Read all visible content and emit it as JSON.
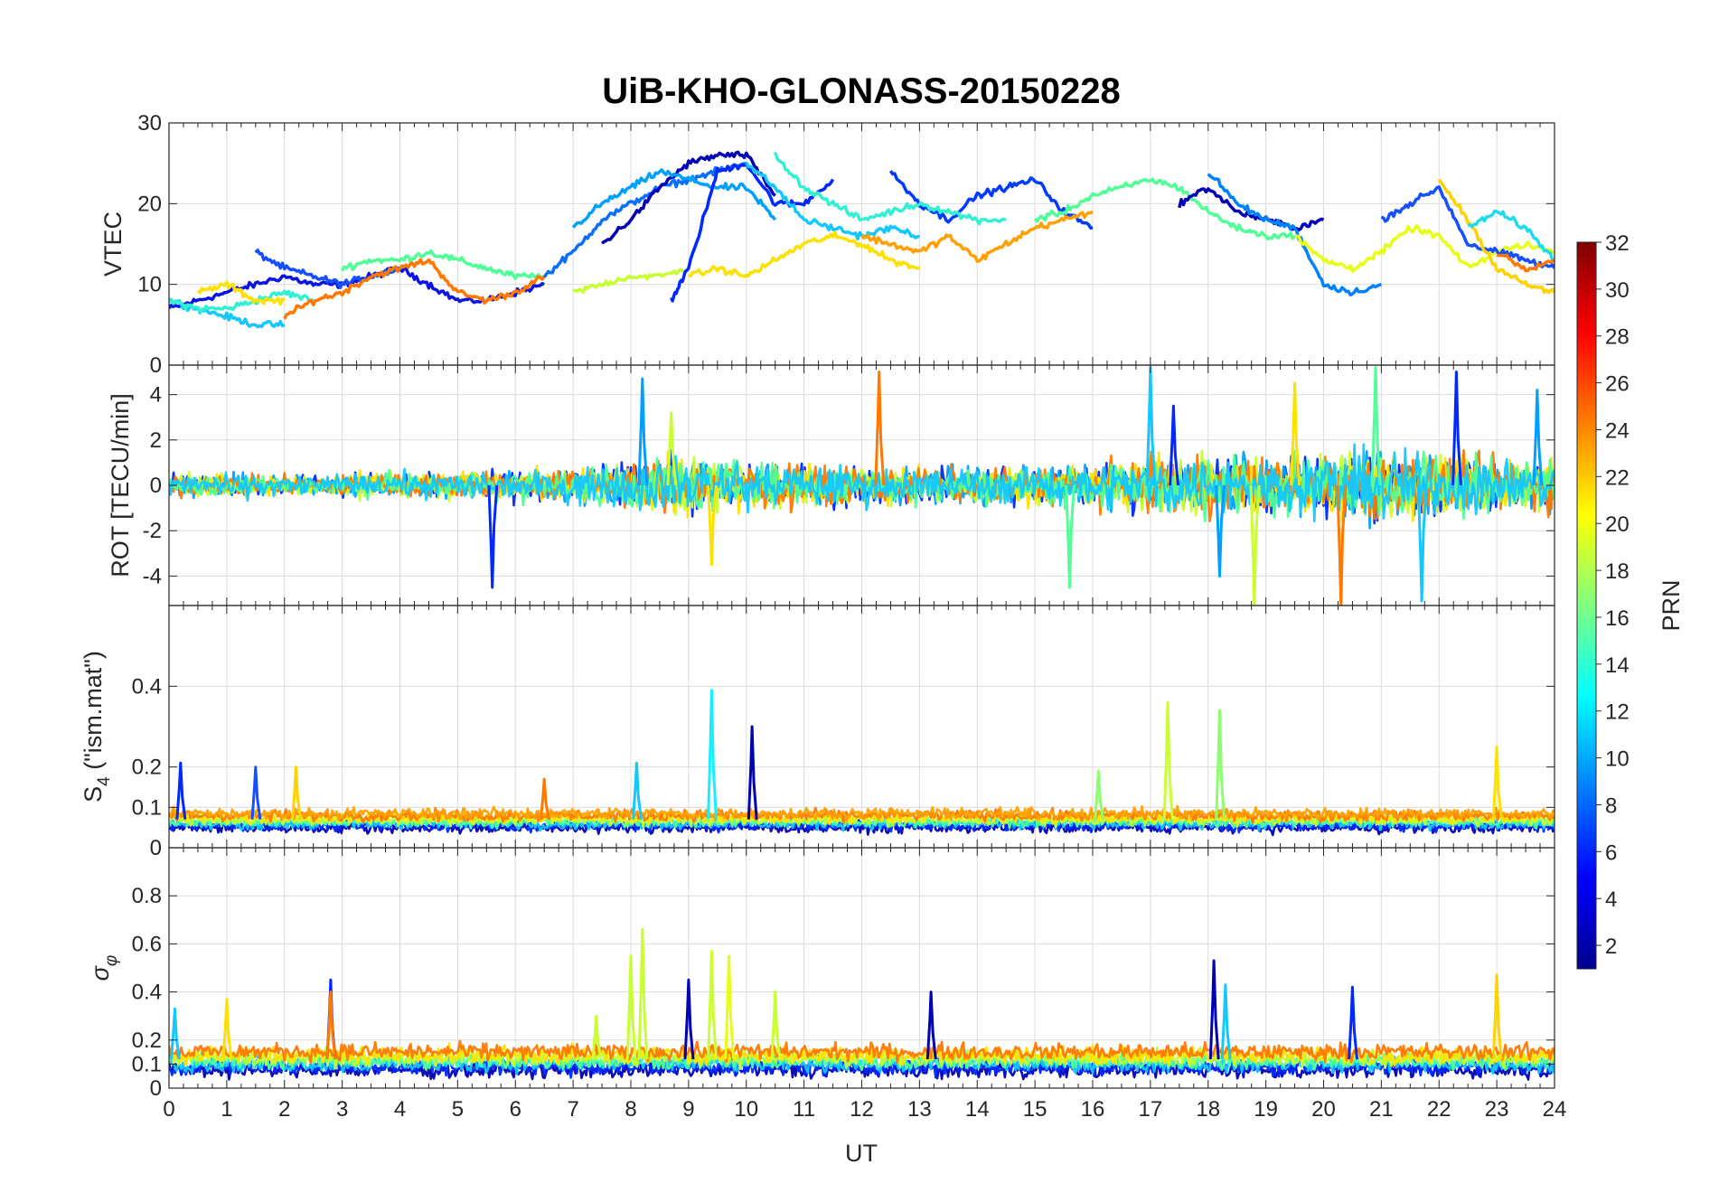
{
  "figure": {
    "title": "UiB-KHO-GLONASS-20150228",
    "xlabel": "UT",
    "colorbar": {
      "label": "PRN",
      "ticks": [
        "32",
        "30",
        "28",
        "26",
        "24",
        "22",
        "20",
        "18",
        "16",
        "14",
        "12",
        "10",
        "8",
        "6",
        "4",
        "2"
      ],
      "range": [
        1,
        32
      ],
      "colormap": "jet"
    }
  },
  "chart_data": [
    {
      "type": "line",
      "panel": "vtec",
      "title": "UiB-KHO-GLONASS-20150228",
      "ylabel": "VTEC",
      "ylim": [
        0,
        30
      ],
      "yticks": [
        0,
        10,
        20,
        30
      ],
      "xlim": [
        0,
        24
      ],
      "xticks": [
        0,
        1,
        2,
        3,
        4,
        5,
        6,
        7,
        8,
        9,
        10,
        11,
        12,
        13,
        14,
        15,
        16,
        17,
        18,
        19,
        20,
        21,
        22,
        23,
        24
      ],
      "grid": true,
      "series": [
        {
          "prn": 3,
          "color": "#0a14e6",
          "x": [
            0.0,
            0.5,
            1.0,
            1.5,
            2.0,
            2.5,
            3.0,
            3.5,
            4.0,
            4.5,
            5.0,
            5.5,
            6.0,
            6.5
          ],
          "y": [
            7,
            8,
            9,
            10,
            11,
            10,
            10,
            11,
            12,
            10,
            8,
            8,
            9,
            10
          ]
        },
        {
          "prn": 5,
          "color": "#1450ff",
          "x": [
            1.5,
            2.0,
            2.5,
            3.0,
            3.5,
            4.0
          ],
          "y": [
            14,
            12,
            11,
            10,
            11,
            12
          ]
        },
        {
          "prn": 12,
          "color": "#14c8ff",
          "x": [
            0.0,
            0.5,
            1.0,
            1.5,
            2.0
          ],
          "y": [
            8,
            7,
            6,
            5,
            5
          ]
        },
        {
          "prn": 14,
          "color": "#32f0d2",
          "x": [
            0.0,
            0.5,
            1.0,
            1.5,
            2.0,
            2.5
          ],
          "y": [
            8,
            7,
            7,
            8,
            9,
            8
          ]
        },
        {
          "prn": 16,
          "color": "#50ff96",
          "x": [
            3.0,
            3.5,
            4.0,
            4.5,
            5.0,
            5.5,
            6.0,
            6.5
          ],
          "y": [
            12,
            13,
            13,
            14,
            13,
            12,
            11,
            11
          ]
        },
        {
          "prn": 24,
          "color": "#ff7800",
          "x": [
            2.0,
            2.5,
            3.0,
            3.5,
            4.0,
            4.5,
            5.0,
            5.5,
            6.0,
            6.5
          ],
          "y": [
            6,
            8,
            9,
            11,
            12,
            13,
            9,
            8,
            9,
            11
          ]
        },
        {
          "prn": 20,
          "color": "#ffe100",
          "x": [
            0.5,
            1.0,
            1.5,
            2.0
          ],
          "y": [
            9,
            10,
            8,
            8
          ]
        },
        {
          "prn": 8,
          "color": "#0a6eff",
          "x": [
            6.5,
            7.0,
            7.5,
            8.0,
            8.5,
            9.0,
            9.5,
            10.0
          ],
          "y": [
            11,
            14,
            18,
            20,
            22,
            23,
            24,
            25
          ]
        },
        {
          "prn": 2,
          "color": "#0000b4",
          "x": [
            7.5,
            8.0,
            8.5,
            9.0,
            9.5,
            10.0,
            10.5
          ],
          "y": [
            15,
            18,
            22,
            25,
            26,
            26,
            21
          ]
        },
        {
          "prn": 10,
          "color": "#00a0ff",
          "x": [
            7.0,
            7.5,
            8.0,
            8.5,
            9.0,
            9.5,
            10.0,
            10.5
          ],
          "y": [
            17,
            20,
            22,
            24,
            23,
            22,
            22,
            18
          ]
        },
        {
          "prn": 18,
          "color": "#c8ff32",
          "x": [
            7.0,
            7.5,
            8.0,
            8.5,
            9.0
          ],
          "y": [
            9,
            10,
            11,
            11,
            12
          ]
        },
        {
          "prn": 4,
          "color": "#0028ff",
          "x": [
            8.7,
            9.0,
            9.5,
            10.0,
            10.5,
            11.0,
            11.5
          ],
          "y": [
            8,
            12,
            24,
            25,
            20,
            20,
            23
          ]
        },
        {
          "prn": 12,
          "color": "#14c8ff",
          "x": [
            10.0,
            10.5,
            11.0,
            11.5,
            12.0,
            12.5,
            13.0
          ],
          "y": [
            25,
            22,
            18,
            17,
            16,
            17,
            16
          ]
        },
        {
          "prn": 20,
          "color": "#ffe100",
          "x": [
            9.0,
            9.5,
            10.0,
            10.5,
            11.0,
            11.5,
            12.0,
            12.5,
            13.0
          ],
          "y": [
            11,
            12,
            11,
            13,
            15,
            16,
            15,
            13,
            12
          ]
        },
        {
          "prn": 6,
          "color": "#003cff",
          "x": [
            12.5,
            13.0,
            13.5,
            14.0,
            14.5,
            15.0,
            15.5,
            16.0
          ],
          "y": [
            24,
            20,
            18,
            21,
            22,
            23,
            19,
            17
          ]
        },
        {
          "prn": 14,
          "color": "#32f0d2",
          "x": [
            10.5,
            11.0,
            11.5,
            12.0,
            12.5,
            13.0,
            13.5,
            14.0,
            14.5
          ],
          "y": [
            26,
            22,
            20,
            18,
            19,
            20,
            19,
            18,
            18
          ]
        },
        {
          "prn": 23,
          "color": "#ffa000",
          "x": [
            12.0,
            12.5,
            13.0,
            13.5,
            14.0,
            14.5,
            15.0,
            15.5,
            16.0
          ],
          "y": [
            16,
            15,
            14,
            16,
            13,
            15,
            17,
            18,
            19
          ]
        },
        {
          "prn": 16,
          "color": "#50ff96",
          "x": [
            15.0,
            15.5,
            16.0,
            16.5,
            17.0,
            17.5,
            18.0,
            18.5,
            19.0,
            19.5
          ],
          "y": [
            18,
            19,
            21,
            22,
            23,
            22,
            19,
            17,
            16,
            16
          ]
        },
        {
          "prn": 2,
          "color": "#0000b4",
          "x": [
            17.5,
            18.0,
            18.5,
            19.0,
            19.5,
            20.0
          ],
          "y": [
            20,
            22,
            19,
            18,
            17,
            18
          ]
        },
        {
          "prn": 9,
          "color": "#0082ff",
          "x": [
            18.0,
            18.5,
            19.0,
            19.5,
            20.0,
            20.5,
            21.0
          ],
          "y": [
            24,
            20,
            18,
            17,
            10,
            9,
            10
          ]
        },
        {
          "prn": 19,
          "color": "#e6ff14",
          "x": [
            19.5,
            20.0,
            20.5,
            21.0,
            21.5,
            22.0,
            22.5,
            23.0,
            23.5,
            24.0
          ],
          "y": [
            16,
            13,
            12,
            14,
            17,
            16,
            12,
            14,
            15,
            14
          ]
        },
        {
          "prn": 5,
          "color": "#1450ff",
          "x": [
            21.0,
            21.5,
            22.0,
            22.5,
            23.0,
            23.5,
            24.0
          ],
          "y": [
            18,
            20,
            22,
            15,
            14,
            13,
            12
          ]
        },
        {
          "prn": 21,
          "color": "#ffd200",
          "x": [
            22.0,
            22.5,
            23.0,
            23.5,
            24.0
          ],
          "y": [
            23,
            18,
            12,
            10,
            9
          ]
        },
        {
          "prn": 13,
          "color": "#1edcf0",
          "x": [
            22.5,
            23.0,
            23.5,
            24.0
          ],
          "y": [
            17,
            19,
            17,
            13
          ]
        },
        {
          "prn": 24,
          "color": "#ff7800",
          "x": [
            23.0,
            23.5,
            24.0
          ],
          "y": [
            14,
            12,
            13
          ]
        }
      ]
    },
    {
      "type": "line",
      "panel": "rot",
      "ylabel": "ROT [TECU/min]",
      "ylim": [
        -5.3,
        5.3
      ],
      "yticks": [
        -4,
        -2,
        0,
        2,
        4
      ],
      "xlim": [
        0,
        24
      ],
      "grid": true,
      "style": "noise-band",
      "noise_envelope": {
        "hours": [
          0,
          1,
          2,
          3,
          4,
          5,
          6,
          7,
          8,
          9,
          10,
          11,
          12,
          13,
          14,
          15,
          16,
          17,
          18,
          19,
          20,
          21,
          22,
          23,
          24
        ],
        "amplitude": [
          0.8,
          0.8,
          0.7,
          0.8,
          0.9,
          1.0,
          1.0,
          1.2,
          1.8,
          2.0,
          1.6,
          1.5,
          1.4,
          1.3,
          1.3,
          1.3,
          1.5,
          1.8,
          2.2,
          2.0,
          2.3,
          2.5,
          2.3,
          2.0,
          1.8
        ]
      },
      "series_colors": [
        "#0028ff",
        "#00a0ff",
        "#c8ff32",
        "#ffe100",
        "#ff7800",
        "#50ff96",
        "#14c8ff"
      ],
      "spikes": [
        {
          "x": 5.6,
          "y": -4.5
        },
        {
          "x": 8.2,
          "y": 4.7
        },
        {
          "x": 8.7,
          "y": 3.2
        },
        {
          "x": 9.4,
          "y": -3.5
        },
        {
          "x": 12.3,
          "y": 5.0
        },
        {
          "x": 15.6,
          "y": -4.5
        },
        {
          "x": 17.0,
          "y": 5.2
        },
        {
          "x": 17.4,
          "y": 3.5
        },
        {
          "x": 18.2,
          "y": -4.0
        },
        {
          "x": 18.8,
          "y": -5.3
        },
        {
          "x": 19.5,
          "y": 4.5
        },
        {
          "x": 20.3,
          "y": -5.3
        },
        {
          "x": 20.9,
          "y": 5.2
        },
        {
          "x": 21.7,
          "y": -5.1
        },
        {
          "x": 22.3,
          "y": 5.0
        },
        {
          "x": 23.7,
          "y": 4.2
        }
      ]
    },
    {
      "type": "line",
      "panel": "s4",
      "ylabel": "S",
      "ylabel_sub": "4",
      "ylabel_suffix": " (\"ism.mat\")",
      "ylim": [
        0,
        0.6
      ],
      "yticks": [
        0,
        0.1,
        0.2,
        0.4
      ],
      "xlim": [
        0,
        24
      ],
      "grid": true,
      "style": "noise-band",
      "baseline": 0.07,
      "noise_amplitude": 0.02,
      "series_colors": [
        "#0000b4",
        "#0028ff",
        "#14c8ff",
        "#50ff96",
        "#c8ff32",
        "#ffe100",
        "#ff7800",
        "#ffa000"
      ],
      "spikes": [
        {
          "x": 0.2,
          "y": 0.21,
          "color": "#0028ff"
        },
        {
          "x": 1.5,
          "y": 0.2,
          "color": "#1450ff"
        },
        {
          "x": 2.2,
          "y": 0.2,
          "color": "#ffd200"
        },
        {
          "x": 6.5,
          "y": 0.17,
          "color": "#ff7800"
        },
        {
          "x": 8.1,
          "y": 0.21,
          "color": "#14c8ff"
        },
        {
          "x": 9.4,
          "y": 0.39,
          "color": "#14f0ff"
        },
        {
          "x": 10.1,
          "y": 0.3,
          "color": "#0000b4"
        },
        {
          "x": 17.3,
          "y": 0.36,
          "color": "#c8ff32"
        },
        {
          "x": 18.2,
          "y": 0.34,
          "color": "#8cff6e"
        },
        {
          "x": 16.1,
          "y": 0.19,
          "color": "#8cff6e"
        },
        {
          "x": 23.0,
          "y": 0.25,
          "color": "#ffe100"
        }
      ]
    },
    {
      "type": "line",
      "panel": "sigma_phi",
      "ylabel": "σ",
      "ylabel_sub": "φ",
      "ylim": [
        0,
        1
      ],
      "yticks": [
        0,
        0.1,
        0.2,
        0.4,
        0.6,
        0.8
      ],
      "xlim": [
        0,
        24
      ],
      "grid": true,
      "style": "noise-band",
      "baseline": 0.12,
      "noise_amplitude": 0.05,
      "series_colors": [
        "#0000b4",
        "#0028ff",
        "#14c8ff",
        "#50ff96",
        "#c8ff32",
        "#ffe100",
        "#ff7800"
      ],
      "spikes": [
        {
          "x": 0.1,
          "y": 0.33,
          "color": "#14c8ff"
        },
        {
          "x": 1.0,
          "y": 0.37,
          "color": "#ffe100"
        },
        {
          "x": 2.8,
          "y": 0.45,
          "color": "#0028ff"
        },
        {
          "x": 2.8,
          "y": 0.4,
          "color": "#ff7800"
        },
        {
          "x": 7.4,
          "y": 0.3,
          "color": "#c8ff32"
        },
        {
          "x": 8.0,
          "y": 0.55,
          "color": "#c8ff32"
        },
        {
          "x": 8.2,
          "y": 0.66,
          "color": "#c8ff32"
        },
        {
          "x": 9.0,
          "y": 0.45,
          "color": "#0000b4"
        },
        {
          "x": 9.4,
          "y": 0.57,
          "color": "#c8ff32"
        },
        {
          "x": 9.7,
          "y": 0.55,
          "color": "#e6ff14"
        },
        {
          "x": 10.5,
          "y": 0.4,
          "color": "#c8ff32"
        },
        {
          "x": 13.2,
          "y": 0.4,
          "color": "#0000b4"
        },
        {
          "x": 18.1,
          "y": 0.53,
          "color": "#0000b4"
        },
        {
          "x": 18.3,
          "y": 0.43,
          "color": "#14c8ff"
        },
        {
          "x": 20.5,
          "y": 0.42,
          "color": "#0028ff"
        },
        {
          "x": 23.0,
          "y": 0.47,
          "color": "#ffd200"
        }
      ]
    }
  ]
}
